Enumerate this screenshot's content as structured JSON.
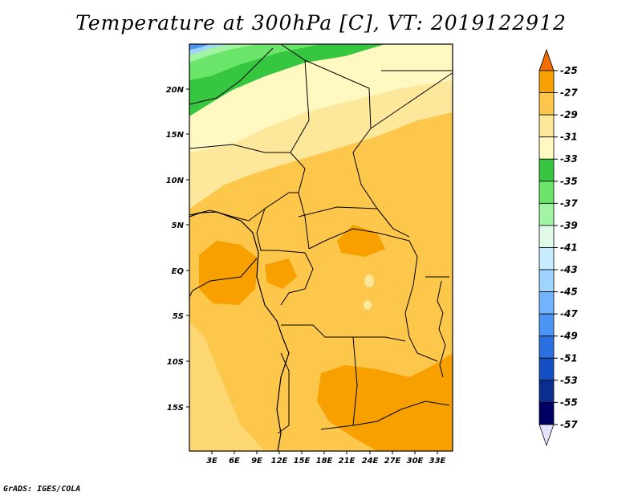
{
  "title": "Temperature at 300hPa [C], VT: 2019122912",
  "credit": "GrADS: IGES/COLA",
  "map": {
    "lat_labels": [
      "20N",
      "15N",
      "10N",
      "5N",
      "EQ",
      "5S",
      "10S",
      "15S"
    ],
    "lon_labels": [
      "3E",
      "6E",
      "9E",
      "12E",
      "15E",
      "18E",
      "21E",
      "24E",
      "27E",
      "30E",
      "33E"
    ]
  },
  "colorbar": {
    "levels": [
      "-25",
      "-27",
      "-29",
      "-31",
      "-33",
      "-35",
      "-37",
      "-39",
      "-41",
      "-43",
      "-45",
      "-47",
      "-49",
      "-51",
      "-53",
      "-55",
      "-57"
    ],
    "colors": [
      "#f46d00",
      "#f7a000",
      "#fcc74b",
      "#fde79a",
      "#fff8c0",
      "#36c640",
      "#6ae56a",
      "#a2f3a2",
      "#e2fbe8",
      "#c7ecff",
      "#9fd4ff",
      "#72b3ff",
      "#4b95f5",
      "#2a70e1",
      "#1450c3",
      "#0a2d8f",
      "#000064",
      "#e4e4ff"
    ]
  }
}
